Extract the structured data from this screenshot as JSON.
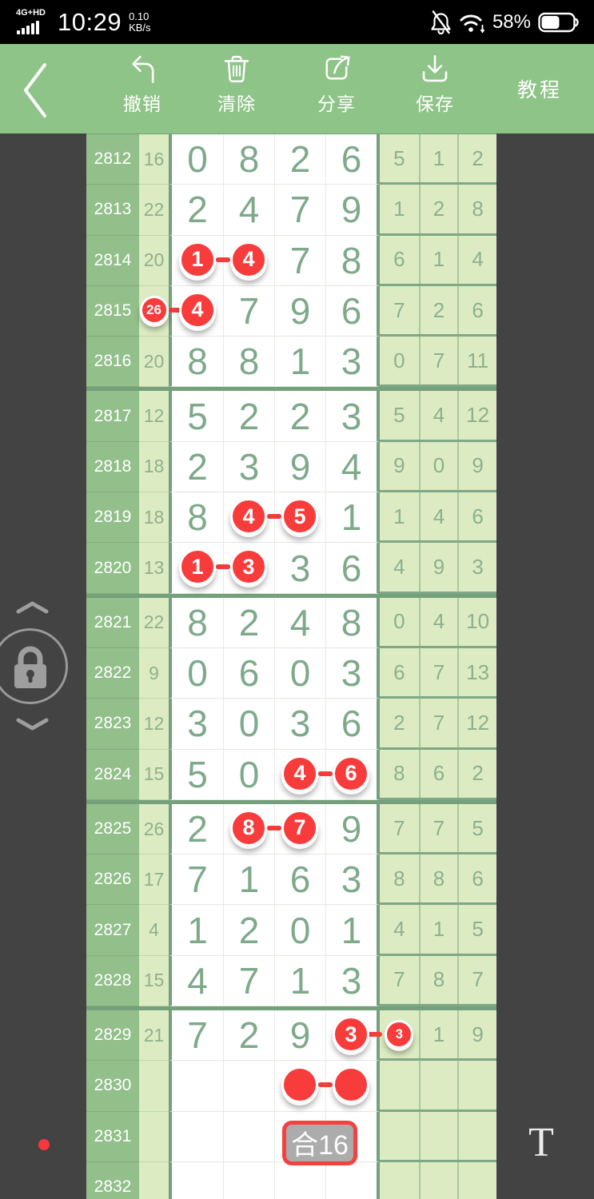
{
  "status_bar": {
    "network": "4G+HD",
    "time": "10:29",
    "speed_value": "0.10",
    "speed_unit": "KB/s",
    "battery_percent": "58%",
    "icons": [
      "signal-bars-icon",
      "bell-muted-icon",
      "wifi-icon",
      "battery-icon"
    ]
  },
  "toolbar": {
    "back_icon": "chevron-left",
    "buttons": [
      {
        "id": "undo",
        "label": "撤销",
        "icon": "undo-icon"
      },
      {
        "id": "clear",
        "label": "清除",
        "icon": "trash-icon"
      },
      {
        "id": "share",
        "label": "分享",
        "icon": "share-icon"
      },
      {
        "id": "save",
        "label": "保存",
        "icon": "download-icon"
      }
    ],
    "tutorial_label": "教程"
  },
  "side_controls": {
    "up_icon": "chevron-up",
    "lock_icon": "padlock",
    "down_icon": "chevron-down"
  },
  "colors": {
    "toolbar_green": "#8ec487",
    "canvas_dark": "#434343",
    "period_col_green": "#93bf8b",
    "light_green_cell": "#dcebc2",
    "grid_sage": "#74a07b",
    "digit_green": "#7ea98b",
    "marker_red": "#f83c3c",
    "badge_gray": "#a6a6a6"
  },
  "chart_data": {
    "type": "table",
    "columns": [
      "period",
      "sum",
      "digit1",
      "digit2",
      "digit3",
      "digit4",
      "extra1",
      "extra2",
      "extra3"
    ],
    "rows": [
      {
        "period": "2812",
        "sum": "16",
        "digits": [
          "0",
          "8",
          "2",
          "6"
        ],
        "extras": [
          "5",
          "1",
          "2"
        ]
      },
      {
        "period": "2813",
        "sum": "22",
        "digits": [
          "2",
          "4",
          "7",
          "9"
        ],
        "extras": [
          "1",
          "2",
          "8"
        ]
      },
      {
        "period": "2814",
        "sum": "20",
        "digits": [
          "1",
          "4",
          "7",
          "8"
        ],
        "extras": [
          "6",
          "1",
          "4"
        ],
        "marks": [
          {
            "col": 1,
            "text": "1",
            "kind": "big"
          },
          {
            "col": 2,
            "text": "4",
            "kind": "big"
          }
        ],
        "links": [
          [
            1,
            2
          ]
        ]
      },
      {
        "period": "2815",
        "sum": "26",
        "digits": [
          "4",
          "7",
          "9",
          "6"
        ],
        "extras": [
          "7",
          "2",
          "6"
        ],
        "marks": [
          {
            "col": 0,
            "text": "26",
            "kind": "small"
          },
          {
            "col": 1,
            "text": "4",
            "kind": "big"
          }
        ],
        "links": [
          [
            0,
            1
          ]
        ]
      },
      {
        "period": "2816",
        "sum": "20",
        "digits": [
          "8",
          "8",
          "1",
          "3"
        ],
        "extras": [
          "0",
          "7",
          "11"
        ],
        "sep_after": true
      },
      {
        "period": "2817",
        "sum": "12",
        "digits": [
          "5",
          "2",
          "2",
          "3"
        ],
        "extras": [
          "5",
          "4",
          "12"
        ]
      },
      {
        "period": "2818",
        "sum": "18",
        "digits": [
          "2",
          "3",
          "9",
          "4"
        ],
        "extras": [
          "9",
          "0",
          "9"
        ]
      },
      {
        "period": "2819",
        "sum": "18",
        "digits": [
          "8",
          "4",
          "5",
          "1"
        ],
        "extras": [
          "1",
          "4",
          "6"
        ],
        "marks": [
          {
            "col": 2,
            "text": "4",
            "kind": "big"
          },
          {
            "col": 3,
            "text": "5",
            "kind": "big"
          }
        ],
        "links": [
          [
            2,
            3
          ]
        ]
      },
      {
        "period": "2820",
        "sum": "13",
        "digits": [
          "1",
          "3",
          "3",
          "6"
        ],
        "extras": [
          "4",
          "9",
          "3"
        ],
        "marks": [
          {
            "col": 1,
            "text": "1",
            "kind": "big"
          },
          {
            "col": 2,
            "text": "3",
            "kind": "big"
          }
        ],
        "links": [
          [
            1,
            2
          ]
        ],
        "sep_after": true
      },
      {
        "period": "2821",
        "sum": "22",
        "digits": [
          "8",
          "2",
          "4",
          "8"
        ],
        "extras": [
          "0",
          "4",
          "10"
        ]
      },
      {
        "period": "2822",
        "sum": "9",
        "digits": [
          "0",
          "6",
          "0",
          "3"
        ],
        "extras": [
          "6",
          "7",
          "13"
        ]
      },
      {
        "period": "2823",
        "sum": "12",
        "digits": [
          "3",
          "0",
          "3",
          "6"
        ],
        "extras": [
          "2",
          "7",
          "12"
        ]
      },
      {
        "period": "2824",
        "sum": "15",
        "digits": [
          "5",
          "0",
          "4",
          "6"
        ],
        "extras": [
          "8",
          "6",
          "2"
        ],
        "marks": [
          {
            "col": 3,
            "text": "4",
            "kind": "big"
          },
          {
            "col": 4,
            "text": "6",
            "kind": "big"
          }
        ],
        "links": [
          [
            3,
            4
          ]
        ],
        "sep_after": true
      },
      {
        "period": "2825",
        "sum": "26",
        "digits": [
          "2",
          "8",
          "7",
          "9"
        ],
        "extras": [
          "7",
          "7",
          "5"
        ],
        "marks": [
          {
            "col": 2,
            "text": "8",
            "kind": "big"
          },
          {
            "col": 3,
            "text": "7",
            "kind": "big"
          }
        ],
        "links": [
          [
            2,
            3
          ]
        ]
      },
      {
        "period": "2826",
        "sum": "17",
        "digits": [
          "7",
          "1",
          "6",
          "3"
        ],
        "extras": [
          "8",
          "8",
          "6"
        ]
      },
      {
        "period": "2827",
        "sum": "4",
        "digits": [
          "1",
          "2",
          "0",
          "1"
        ],
        "extras": [
          "4",
          "1",
          "5"
        ]
      },
      {
        "period": "2828",
        "sum": "15",
        "digits": [
          "4",
          "7",
          "1",
          "3"
        ],
        "extras": [
          "7",
          "8",
          "7"
        ],
        "sep_after": true
      },
      {
        "period": "2829",
        "sum": "21",
        "digits": [
          "7",
          "2",
          "9",
          "3"
        ],
        "extras": [
          "3",
          "1",
          "9"
        ],
        "marks": [
          {
            "col": 4,
            "text": "3",
            "kind": "big"
          },
          {
            "col": 5,
            "text": "3",
            "kind": "small"
          }
        ],
        "links": [
          [
            4,
            5
          ]
        ]
      },
      {
        "period": "2830",
        "sum": "",
        "digits": [
          "",
          "",
          "",
          ""
        ],
        "extras": [
          "",
          "",
          ""
        ],
        "marks": [
          {
            "col": 3,
            "text": "",
            "kind": "big"
          },
          {
            "col": 4,
            "text": "",
            "kind": "big"
          }
        ],
        "links": [
          [
            3,
            4
          ]
        ]
      },
      {
        "period": "2831",
        "sum": "",
        "digits": [
          "",
          "",
          "",
          ""
        ],
        "extras": [
          "",
          "",
          ""
        ],
        "badge": "合16"
      },
      {
        "period": "2832",
        "sum": "",
        "digits": [
          "",
          "",
          "",
          ""
        ],
        "extras": [
          "",
          "",
          ""
        ]
      }
    ]
  },
  "floaters": {
    "red_dot": "recording-dot",
    "text_tool": "T"
  }
}
